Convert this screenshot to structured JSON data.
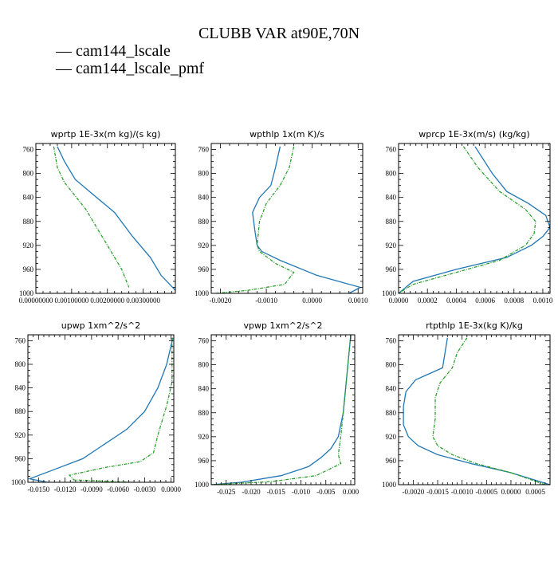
{
  "title": "CLUBB VAR at90E,70N",
  "legend": [
    {
      "label": "— cam144_lscale",
      "color": "#1f77b4"
    },
    {
      "label": "— cam144_lscale_pmf",
      "color": "#2ca02c"
    }
  ],
  "chart_data": [
    {
      "type": "line",
      "title": "wprtp  1E-3x(m kg)/(s kg)",
      "xlim": [
        0,
        0.0039
      ],
      "ylim": [
        1000,
        750
      ],
      "x_ticks": [
        0,
        0.001,
        0.002,
        0.003
      ],
      "x_tick_labels": [
        "0.00000000",
        "0.00100000",
        "0.00200000",
        "0.00300000"
      ],
      "y_ticks": [
        760,
        800,
        840,
        880,
        920,
        960,
        1000
      ],
      "series": [
        {
          "color": "#1f77b4",
          "dashed": false,
          "x": [
            0.0006,
            0.0008,
            0.0011,
            0.0015,
            0.0022,
            0.0027,
            0.0032,
            0.0035,
            0.0039
          ],
          "y": [
            755,
            780,
            810,
            830,
            865,
            905,
            940,
            970,
            995
          ]
        },
        {
          "color": "#2ca02c",
          "dashed": true,
          "x": [
            0.0005,
            0.0006,
            0.0008,
            0.001,
            0.0014,
            0.0017,
            0.002,
            0.0024,
            0.0026
          ],
          "y": [
            755,
            790,
            815,
            830,
            860,
            890,
            920,
            960,
            990
          ]
        }
      ]
    },
    {
      "type": "line",
      "title": "wpthlp  1x(m K)/s",
      "xlim": [
        -0.0022,
        0.0011
      ],
      "ylim": [
        1000,
        750
      ],
      "x_ticks": [
        -0.002,
        -0.001,
        0,
        0.001
      ],
      "x_tick_labels": [
        "-0.0020",
        "-0.0010",
        "0.0000",
        "0.0010"
      ],
      "y_ticks": [
        760,
        800,
        840,
        880,
        920,
        960,
        1000
      ],
      "series": [
        {
          "color": "#1f77b4",
          "dashed": false,
          "x": [
            -0.0007,
            -0.0008,
            -0.0009,
            -0.00115,
            -0.0013,
            -0.00125,
            -0.0012,
            -0.0011,
            -0.0007,
            0.0001,
            0.00105,
            0.0008
          ],
          "y": [
            755,
            790,
            820,
            840,
            865,
            895,
            920,
            930,
            945,
            970,
            990,
            1000
          ]
        },
        {
          "color": "#2ca02c",
          "dashed": true,
          "x": [
            -0.0004,
            -0.0005,
            -0.0007,
            -0.001,
            -0.00115,
            -0.0012,
            -0.00115,
            -0.0008,
            -0.0004,
            -0.0006,
            -0.0014,
            -0.0021
          ],
          "y": [
            755,
            790,
            820,
            850,
            880,
            920,
            930,
            950,
            965,
            985,
            995,
            1000
          ]
        }
      ]
    },
    {
      "type": "line",
      "title": "wprcp  1E-3x(m/s) (kg/kg)",
      "xlim": [
        0,
        0.00105
      ],
      "ylim": [
        1000,
        750
      ],
      "x_ticks": [
        0,
        0.0002,
        0.0004,
        0.0006,
        0.0008,
        0.001
      ],
      "x_tick_labels": [
        "0.0000",
        "0.0002",
        "0.0004",
        "0.0006",
        "0.0008",
        "0.0010"
      ],
      "y_ticks": [
        760,
        800,
        840,
        880,
        920,
        960,
        1000
      ],
      "series": [
        {
          "color": "#1f77b4",
          "dashed": false,
          "x": [
            0.00053,
            0.00065,
            0.00075,
            0.0009,
            0.00102,
            0.00105,
            0.001,
            0.00092,
            0.00075,
            0.0004,
            0.0001,
            0.0
          ],
          "y": [
            755,
            800,
            830,
            850,
            870,
            890,
            905,
            920,
            940,
            960,
            980,
            1000
          ]
        },
        {
          "color": "#2ca02c",
          "dashed": true,
          "x": [
            0.00045,
            0.00055,
            0.0007,
            0.00088,
            0.00095,
            0.00094,
            0.00088,
            0.0007,
            0.0004,
            0.0001,
            0.0
          ],
          "y": [
            755,
            790,
            830,
            860,
            880,
            900,
            920,
            945,
            965,
            985,
            1000
          ]
        }
      ]
    },
    {
      "type": "line",
      "title": "upwp  1xm^2/s^2",
      "xlim": [
        -0.0162,
        0.0003
      ],
      "ylim": [
        1000,
        750
      ],
      "x_ticks": [
        -0.015,
        -0.012,
        -0.009,
        -0.006,
        -0.003,
        0
      ],
      "x_tick_labels": [
        "-0.0150",
        "-0.0120",
        "-0.0090",
        "-0.0060",
        "-0.0030",
        "0.0000"
      ],
      "y_ticks": [
        760,
        800,
        840,
        880,
        920,
        960,
        1000
      ],
      "series": [
        {
          "color": "#1f77b4",
          "dashed": false,
          "x": [
            0.0002,
            -0.0005,
            -0.0015,
            -0.003,
            -0.005,
            -0.0075,
            -0.01,
            -0.0135,
            -0.016,
            -0.014,
            -0.009
          ],
          "y": [
            755,
            800,
            840,
            880,
            910,
            935,
            960,
            980,
            994,
            1000,
            1002
          ]
        },
        {
          "color": "#2ca02c",
          "dashed": true,
          "x": [
            0.0001,
            0.0001,
            -0.0005,
            -0.0015,
            -0.002,
            -0.0035,
            -0.0075,
            -0.0115,
            -0.011,
            -0.0045,
            0.0001
          ],
          "y": [
            755,
            830,
            870,
            920,
            950,
            965,
            975,
            988,
            996,
            1000,
            1002
          ]
        }
      ]
    },
    {
      "type": "line",
      "title": "vpwp  1xm^2/s^2",
      "xlim": [
        -0.028,
        0.0008
      ],
      "ylim": [
        1000,
        750
      ],
      "x_ticks": [
        -0.025,
        -0.02,
        -0.015,
        -0.01,
        -0.005,
        0
      ],
      "x_tick_labels": [
        "-0.025",
        "-0.020",
        "-0.015",
        "-0.010",
        "-0.005",
        "0.000"
      ],
      "y_ticks": [
        760,
        800,
        840,
        880,
        920,
        960,
        1000
      ],
      "series": [
        {
          "color": "#1f77b4",
          "dashed": false,
          "x": [
            0.0,
            -0.0008,
            -0.0015,
            -0.0025,
            -0.004,
            -0.006,
            -0.0085,
            -0.014,
            -0.022,
            -0.028
          ],
          "y": [
            750,
            820,
            880,
            920,
            940,
            955,
            970,
            985,
            996,
            1000
          ]
        },
        {
          "color": "#2ca02c",
          "dashed": true,
          "x": [
            0.0,
            -0.0008,
            -0.0015,
            -0.002,
            -0.0025,
            -0.002,
            -0.007,
            -0.016,
            -0.028
          ],
          "y": [
            750,
            820,
            880,
            920,
            950,
            965,
            985,
            995,
            1000
          ]
        }
      ]
    },
    {
      "type": "line",
      "title": "rtpthlp  1E-3x(kg K)/kg",
      "xlim": [
        -0.0023,
        0.0008
      ],
      "ylim": [
        1000,
        750
      ],
      "x_ticks": [
        -0.002,
        -0.0015,
        -0.001,
        -0.0005,
        0,
        0.0005
      ],
      "x_tick_labels": [
        "-0.0020",
        "-0.0015",
        "-0.0010",
        "-0.0005",
        "0.0000",
        "0.0005"
      ],
      "y_ticks": [
        760,
        800,
        840,
        880,
        920,
        960,
        1000
      ],
      "series": [
        {
          "color": "#1f77b4",
          "dashed": false,
          "x": [
            -0.0013,
            -0.0014,
            -0.00195,
            -0.00215,
            -0.0022,
            -0.0022,
            -0.0021,
            -0.0019,
            -0.0015,
            -0.0008,
            0.0,
            0.0008
          ],
          "y": [
            755,
            805,
            825,
            845,
            870,
            900,
            920,
            935,
            950,
            965,
            980,
            1000
          ]
        },
        {
          "color": "#2ca02c",
          "dashed": true,
          "x": [
            -0.0009,
            -0.0011,
            -0.0012,
            -0.00145,
            -0.00155,
            -0.00155,
            -0.0016,
            -0.0015,
            -0.0012,
            -0.0007,
            0.0,
            0.0007
          ],
          "y": [
            755,
            780,
            805,
            830,
            855,
            890,
            920,
            935,
            950,
            965,
            980,
            1000
          ]
        }
      ]
    }
  ]
}
